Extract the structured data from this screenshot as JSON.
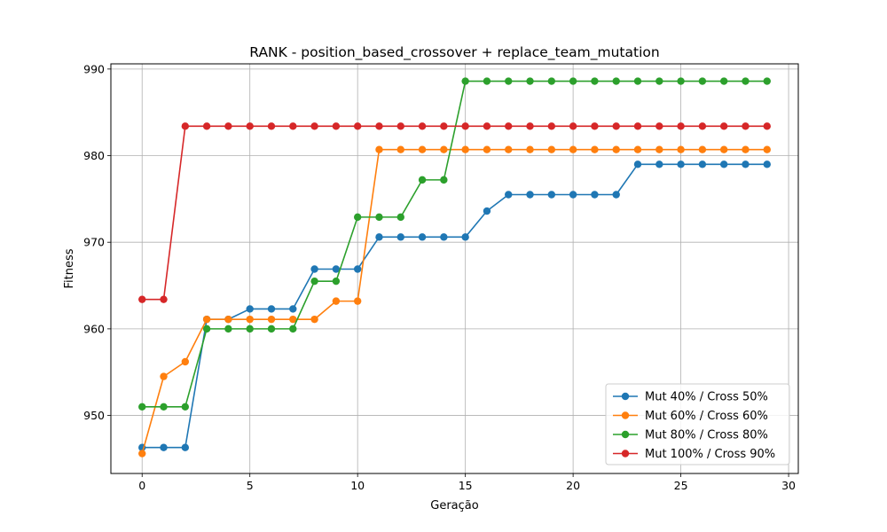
{
  "chart_data": {
    "type": "line",
    "title": "RANK - position_based_crossover + replace_team_mutation",
    "xlabel": "Geração",
    "ylabel": "Fitness",
    "xlim": [
      -1.45,
      30.45
    ],
    "ylim": [
      943.3,
      990.6
    ],
    "xticks": [
      0,
      5,
      10,
      15,
      20,
      25,
      30
    ],
    "yticks": [
      950,
      960,
      970,
      980,
      990
    ],
    "grid": true,
    "legend_position": "lower-right",
    "x": [
      0,
      1,
      2,
      3,
      4,
      5,
      6,
      7,
      8,
      9,
      10,
      11,
      12,
      13,
      14,
      15,
      16,
      17,
      18,
      19,
      20,
      21,
      22,
      23,
      24,
      25,
      26,
      27,
      28,
      29
    ],
    "series": [
      {
        "name": "Mut 40% / Cross 50%",
        "color": "#1f77b4",
        "values": [
          946.3,
          946.3,
          946.3,
          961.1,
          961.1,
          962.3,
          962.3,
          962.3,
          966.9,
          966.9,
          966.9,
          970.6,
          970.6,
          970.6,
          970.6,
          970.6,
          973.6,
          975.5,
          975.5,
          975.5,
          975.5,
          975.5,
          975.5,
          979.0,
          979.0,
          979.0,
          979.0,
          979.0,
          979.0,
          979.0
        ]
      },
      {
        "name": "Mut 60% / Cross 60%",
        "color": "#ff7f0e",
        "values": [
          945.6,
          954.5,
          956.2,
          961.1,
          961.1,
          961.1,
          961.1,
          961.1,
          961.1,
          963.2,
          963.2,
          980.7,
          980.7,
          980.7,
          980.7,
          980.7,
          980.7,
          980.7,
          980.7,
          980.7,
          980.7,
          980.7,
          980.7,
          980.7,
          980.7,
          980.7,
          980.7,
          980.7,
          980.7,
          980.7
        ]
      },
      {
        "name": "Mut 80% / Cross 80%",
        "color": "#2ca02c",
        "values": [
          951.0,
          951.0,
          951.0,
          960.0,
          960.0,
          960.0,
          960.0,
          960.0,
          965.5,
          965.5,
          972.9,
          972.9,
          972.9,
          977.2,
          977.2,
          988.6,
          988.6,
          988.6,
          988.6,
          988.6,
          988.6,
          988.6,
          988.6,
          988.6,
          988.6,
          988.6,
          988.6,
          988.6,
          988.6,
          988.6
        ]
      },
      {
        "name": "Mut 100% / Cross 90%",
        "color": "#d62728",
        "values": [
          963.4,
          963.4,
          983.4,
          983.4,
          983.4,
          983.4,
          983.4,
          983.4,
          983.4,
          983.4,
          983.4,
          983.4,
          983.4,
          983.4,
          983.4,
          983.4,
          983.4,
          983.4,
          983.4,
          983.4,
          983.4,
          983.4,
          983.4,
          983.4,
          983.4,
          983.4,
          983.4,
          983.4,
          983.4,
          983.4
        ]
      }
    ]
  }
}
